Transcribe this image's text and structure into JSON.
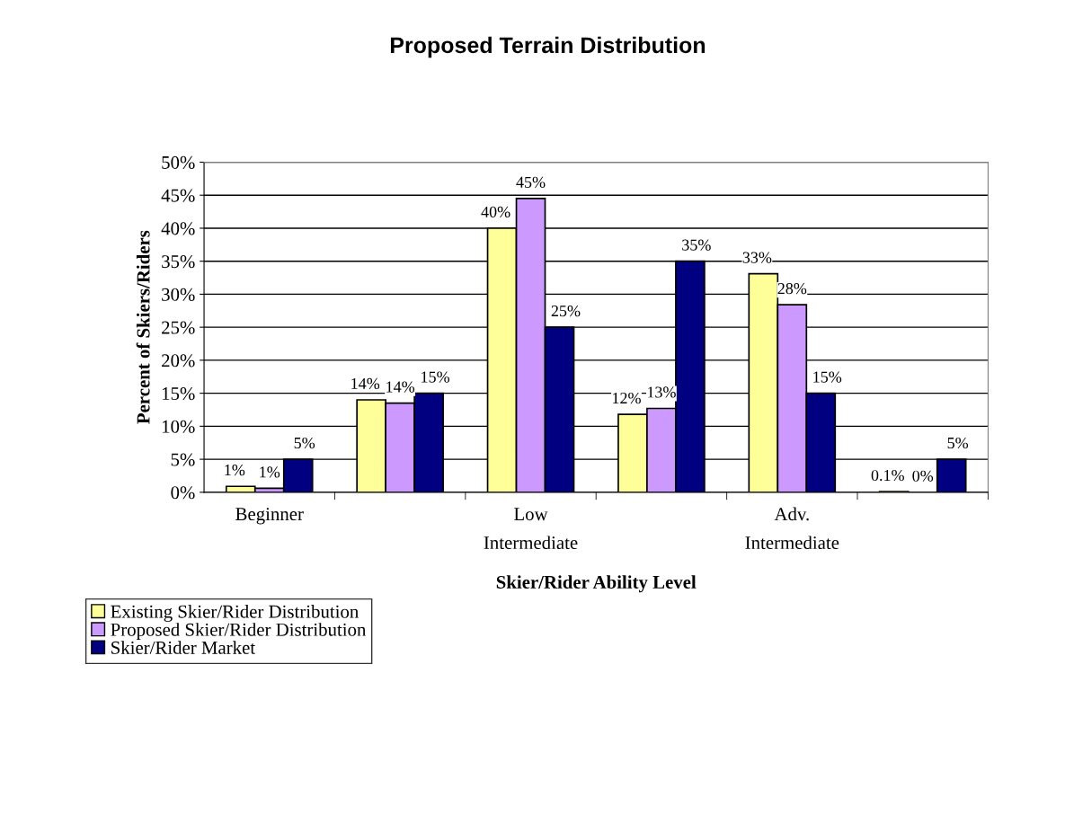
{
  "chart_data": {
    "type": "bar",
    "title": "Proposed Terrain Distribution",
    "xlabel": "Skier/Rider Ability Level",
    "ylabel": "Percent of Skiers/Riders",
    "categories": [
      "Beginner",
      null,
      "Low\nIntermediate",
      null,
      "Adv.\nIntermediate",
      null
    ],
    "series": [
      {
        "name": "Existing Skier/Rider Distribution",
        "color": "#ffff99",
        "values": [
          0.9,
          14,
          40,
          11.8,
          33.1,
          0.1
        ],
        "value_labels": [
          "1%",
          "14%",
          "40%",
          "12%",
          "33%",
          "0.1%"
        ]
      },
      {
        "name": "Proposed Skier/Rider Distribution",
        "color": "#cc99ff",
        "values": [
          0.6,
          13.5,
          44.5,
          12.7,
          28.4,
          0
        ],
        "value_labels": [
          "1%",
          "14%",
          "45%",
          "13%",
          "28%",
          "0%"
        ]
      },
      {
        "name": "Skier/Rider Market",
        "color": "#000080",
        "values": [
          5,
          15,
          25,
          35,
          15,
          5
        ],
        "value_labels": [
          "5%",
          "15%",
          "25%",
          "35%",
          "15%",
          "5%"
        ]
      }
    ],
    "ylim": [
      0,
      50
    ],
    "yticks": [
      {
        "value": 0,
        "label": "0%"
      },
      {
        "value": 5,
        "label": "5%"
      },
      {
        "value": 10,
        "label": "10%"
      },
      {
        "value": 15,
        "label": "15%"
      },
      {
        "value": 20,
        "label": "20%"
      },
      {
        "value": 25,
        "label": "25%"
      },
      {
        "value": 30,
        "label": "30%"
      },
      {
        "value": 35,
        "label": "35%"
      },
      {
        "value": 40,
        "label": "40%"
      },
      {
        "value": 45,
        "label": "45%"
      },
      {
        "value": 50,
        "label": "50%"
      }
    ],
    "grid": "y",
    "legend": "bottom left"
  }
}
